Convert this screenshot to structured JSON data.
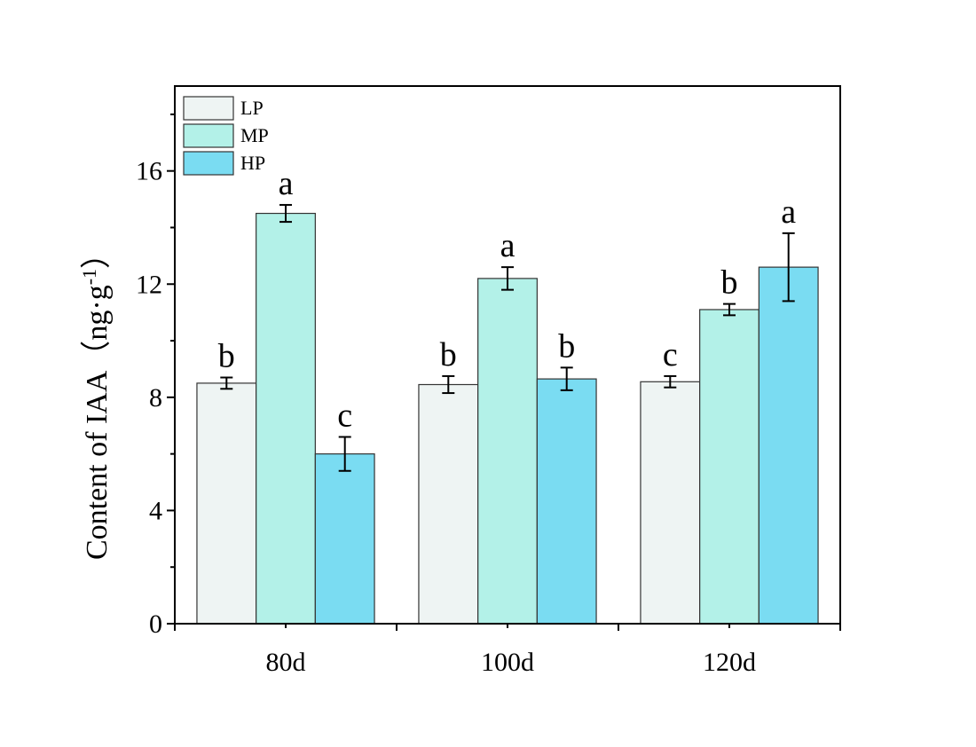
{
  "chart_data": {
    "type": "bar",
    "categories": [
      "80d",
      "100d",
      "120d"
    ],
    "ylabel": "Content of IAA（ng·g",
    "ylabel_superscript": "-1",
    "ylabel_close": "）",
    "ylim": [
      0,
      19
    ],
    "yticks": [
      0,
      4,
      8,
      12,
      16
    ],
    "grid": false,
    "legend_position": "top-left",
    "series": [
      {
        "name": "LP",
        "color": "#eef4f3",
        "values": [
          8.5,
          8.45,
          8.55
        ],
        "errors": [
          0.2,
          0.3,
          0.2
        ],
        "significance": [
          "b",
          "b",
          "c"
        ]
      },
      {
        "name": "MP",
        "color": "#b3f1e8",
        "values": [
          14.5,
          12.2,
          11.1
        ],
        "errors": [
          0.3,
          0.4,
          0.2
        ],
        "significance": [
          "a",
          "a",
          "b"
        ]
      },
      {
        "name": "HP",
        "color": "#7adcf2",
        "values": [
          6.0,
          8.65,
          12.6
        ],
        "errors": [
          0.6,
          0.4,
          1.2
        ],
        "significance": [
          "c",
          "b",
          "a"
        ]
      }
    ]
  }
}
